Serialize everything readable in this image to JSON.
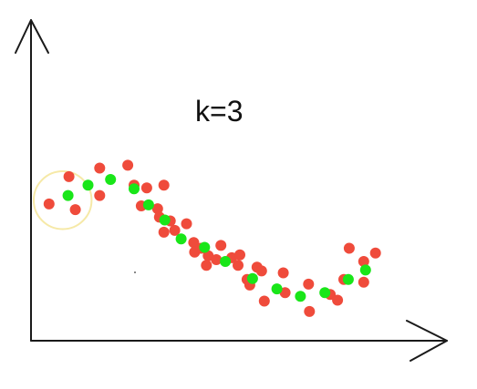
{
  "title": "k=3",
  "colors": {
    "raw_points": "#ef4b3b",
    "smoothed_points": "#19e619",
    "highlight_circle": "#f6e9a7",
    "axes": "#1a1a1a"
  },
  "chart_data": {
    "type": "scatter",
    "annotation": "k=3",
    "grid": false,
    "xlim": [
      0,
      460
    ],
    "ylim": [
      0,
      340
    ],
    "highlight": {
      "cx": 35,
      "cy": 149,
      "r": 32
    },
    "series": [
      {
        "role": "raw",
        "color": "#ef4b3b",
        "points": [
          [
            20,
            145
          ],
          [
            42,
            174
          ],
          [
            49,
            139
          ],
          [
            76,
            183
          ],
          [
            76,
            154
          ],
          [
            107,
            186
          ],
          [
            114,
            165
          ],
          [
            122,
            143
          ],
          [
            128,
            162
          ],
          [
            147,
            165
          ],
          [
            140,
            140
          ],
          [
            142,
            131
          ],
          [
            147,
            115
          ],
          [
            154,
            127
          ],
          [
            159,
            117
          ],
          [
            172,
            124
          ],
          [
            180,
            104
          ],
          [
            181,
            94
          ],
          [
            188,
            98
          ],
          [
            196,
            90
          ],
          [
            194,
            80
          ],
          [
            205,
            86
          ],
          [
            210,
            101
          ],
          [
            222,
            88
          ],
          [
            229,
            80
          ],
          [
            231,
            91
          ],
          [
            242,
            59
          ],
          [
            239,
            65
          ],
          [
            250,
            78
          ],
          [
            255,
            74
          ],
          [
            258,
            42
          ],
          [
            279,
            72
          ],
          [
            281,
            51
          ],
          [
            307,
            60
          ],
          [
            308,
            31
          ],
          [
            331,
            49
          ],
          [
            339,
            43
          ],
          [
            346,
            65
          ],
          [
            352,
            98
          ],
          [
            368,
            62
          ],
          [
            368,
            84
          ],
          [
            381,
            93
          ]
        ]
      },
      {
        "role": "smoothed",
        "color": "#19e619",
        "points": [
          [
            41,
            154
          ],
          [
            63,
            165
          ],
          [
            88,
            171
          ],
          [
            114,
            161
          ],
          [
            130,
            144
          ],
          [
            148,
            128
          ],
          [
            166,
            108
          ],
          [
            192,
            99
          ],
          [
            215,
            84
          ],
          [
            245,
            66
          ],
          [
            272,
            55
          ],
          [
            298,
            47
          ],
          [
            325,
            51
          ],
          [
            351,
            65
          ],
          [
            370,
            75
          ]
        ]
      }
    ]
  }
}
